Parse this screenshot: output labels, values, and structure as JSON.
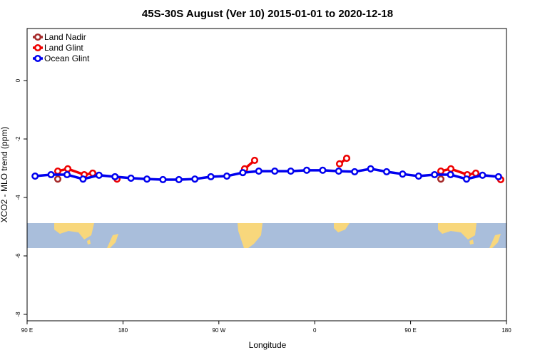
{
  "chart_data": {
    "type": "line",
    "title": "45S-30S August (Ver 10)   2015-01-01 to 2020-12-18",
    "x_label": "Longitude",
    "y_label": "XCO2 - MLO trend (ppm)",
    "xlim": [
      90,
      540
    ],
    "xticks": [
      {
        "value": 90,
        "label": "90 E"
      },
      {
        "value": 180,
        "label": "180"
      },
      {
        "value": 270,
        "label": "90 W"
      },
      {
        "value": 360,
        "label": "0"
      },
      {
        "value": 450,
        "label": "90 E"
      },
      {
        "value": 540,
        "label": "180"
      }
    ],
    "ylim": [
      -8.22,
      1.78
    ],
    "yticks": [
      0,
      -2,
      -4,
      -6,
      -8
    ],
    "legend": "top-left",
    "series": [
      {
        "name": "Land Nadir",
        "color": "#a52a2a",
        "x": [
          118.8,
          null,
          151.6,
          null,
          390.0,
          null,
          478.4,
          null,
          511.2
        ],
        "values": [
          -3.37,
          null,
          -3.17,
          null,
          -2.66,
          null,
          -3.37,
          null,
          -3.17
        ]
      },
      {
        "name": "Land Glint",
        "color": "#ee0000",
        "x": [
          118.8,
          128.2,
          143.6,
          151.6,
          null,
          174.4,
          null,
          294.2,
          303.6,
          null,
          383.3,
          390.0,
          null,
          478.4,
          487.8,
          503.2,
          511.2,
          null,
          534.6
        ],
        "values": [
          -3.1,
          -3.02,
          -3.22,
          -3.17,
          null,
          -3.37,
          null,
          -3.02,
          -2.73,
          null,
          -2.85,
          -2.66,
          null,
          -3.1,
          -3.02,
          -3.22,
          -3.17,
          null,
          -3.39
        ]
      },
      {
        "name": "Ocean Glint",
        "color": "#0000ee",
        "x": [
          97.5,
          112.5,
          127.5,
          142.5,
          157.5,
          172.5,
          187.5,
          202.5,
          217.5,
          232.5,
          247.5,
          262.5,
          277.5,
          292.5,
          307.5,
          322.5,
          337.5,
          352.5,
          367.5,
          382.5,
          397.5,
          412.5,
          427.5,
          442.5,
          457.5,
          472.5,
          487.5,
          502.5,
          517.5,
          532.5
        ],
        "values": [
          -3.27,
          -3.22,
          -3.22,
          -3.37,
          -3.24,
          -3.29,
          -3.34,
          -3.37,
          -3.39,
          -3.39,
          -3.37,
          -3.29,
          -3.27,
          -3.15,
          -3.1,
          -3.1,
          -3.1,
          -3.07,
          -3.07,
          -3.1,
          -3.12,
          -3.02,
          -3.12,
          -3.2,
          -3.27,
          -3.22,
          -3.22,
          -3.37,
          -3.24,
          -3.29
        ]
      }
    ]
  }
}
